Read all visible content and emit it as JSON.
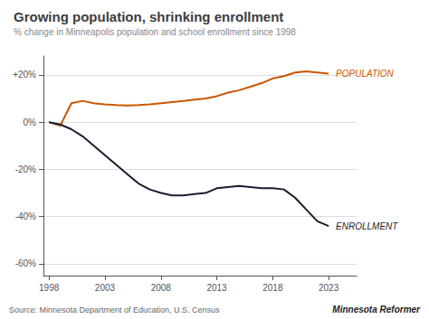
{
  "chart_data": {
    "type": "line",
    "title": "Growing population, shrinking enrollment",
    "subtitle": "% change in Minneapolis population and school enrollment since 1998",
    "source": "Source: Minnesota Department of Education, U.S. Census",
    "watermark": "Minnesota Reformer",
    "x": [
      1998,
      1999,
      2000,
      2001,
      2002,
      2003,
      2004,
      2005,
      2006,
      2007,
      2008,
      2009,
      2010,
      2011,
      2012,
      2013,
      2014,
      2015,
      2016,
      2017,
      2018,
      2019,
      2020,
      2021,
      2022,
      2023
    ],
    "series": [
      {
        "name": "POPULATION",
        "color": "#cc5500",
        "values": [
          0,
          -1.5,
          8,
          9,
          8,
          7.5,
          7.2,
          7.0,
          7.2,
          7.5,
          8.0,
          8.5,
          9.0,
          9.5,
          10.0,
          11.0,
          12.5,
          13.5,
          15.0,
          16.5,
          18.5,
          19.5,
          21.0,
          21.5,
          21.0,
          20.5
        ]
      },
      {
        "name": "ENROLLMENT",
        "color": "#1c1c2e",
        "values": [
          0,
          -1,
          -3,
          -6,
          -10,
          -14,
          -18,
          -22,
          -26,
          -28.5,
          -30,
          -31,
          -31,
          -30.5,
          -30,
          -28,
          -27.5,
          -27,
          -27.5,
          -28,
          -28,
          -28.5,
          -32,
          -37,
          -42,
          -44
        ]
      }
    ],
    "xlim": [
      1997.5,
      2025.5
    ],
    "xticks": [
      1998,
      2003,
      2008,
      2013,
      2018,
      2023
    ],
    "ylim": [
      -65,
      28
    ],
    "yticks": [
      {
        "value": -60,
        "label": "-60%"
      },
      {
        "value": -40,
        "label": "-40%"
      },
      {
        "value": -20,
        "label": "-20%"
      },
      {
        "value": 0,
        "label": "0%"
      },
      {
        "value": 20,
        "label": "+20%"
      }
    ],
    "grid": true
  }
}
